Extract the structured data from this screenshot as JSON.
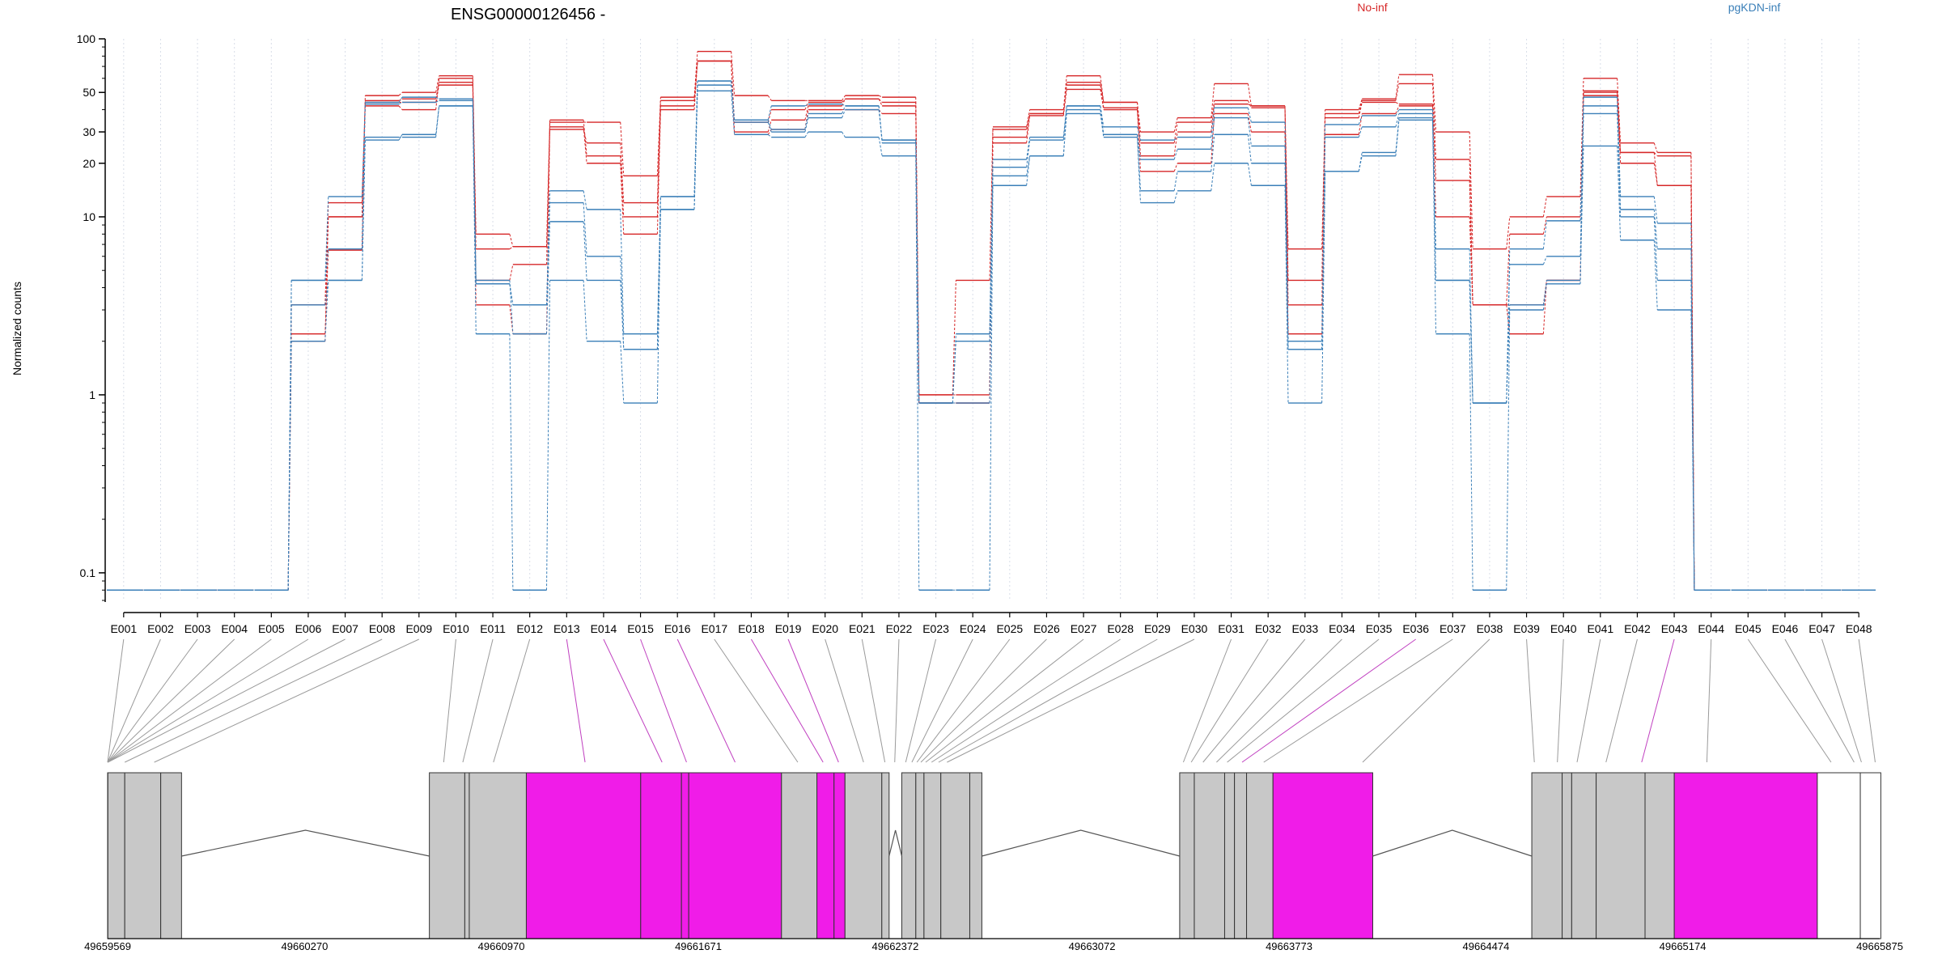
{
  "title": "ENSG00000126456 -",
  "legend": [
    {
      "label": "No-inf",
      "color": "#d62728"
    },
    {
      "label": "pgKDN-inf",
      "color": "#3a7fb8"
    }
  ],
  "ylabel": "Normalized counts",
  "colors": {
    "no_inf": "#d62728",
    "pgkdn_inf": "#3a7fb8",
    "exon_gray": "#c8c8c8",
    "exon_highlight": "#f01ce8",
    "connector_gray": "#9a9a9a",
    "connector_highlight": "#c040c0"
  },
  "chart_data": {
    "type": "line",
    "yscale": "log",
    "ylim": [
      0.07,
      100
    ],
    "grid": "vertical dashed lines at exon centers",
    "legend_position": "top",
    "yticks": [
      {
        "value": 0.1,
        "label": "0.1"
      },
      {
        "value": 1,
        "label": "1"
      },
      {
        "value": 10,
        "label": "10"
      },
      {
        "value": 20,
        "label": "20"
      },
      {
        "value": 30,
        "label": "30"
      },
      {
        "value": 50,
        "label": "50"
      },
      {
        "value": 100,
        "label": "100"
      }
    ],
    "categories": [
      "E001",
      "E002",
      "E003",
      "E004",
      "E005",
      "E006",
      "E007",
      "E008",
      "E009",
      "E010",
      "E011",
      "E012",
      "E013",
      "E014",
      "E015",
      "E016",
      "E017",
      "E018",
      "E019",
      "E020",
      "E021",
      "E022",
      "E023",
      "E024",
      "E025",
      "E026",
      "E027",
      "E028",
      "E029",
      "E030",
      "E031",
      "E032",
      "E033",
      "E034",
      "E035",
      "E036",
      "E037",
      "E038",
      "E039",
      "E040",
      "E041",
      "E042",
      "E043",
      "E044",
      "E045",
      "E046",
      "E047",
      "E048"
    ],
    "highlighted_exons": [
      "E013",
      "E014",
      "E015",
      "E016",
      "E018",
      "E019",
      "E036",
      "E043"
    ],
    "series": [
      {
        "name": "No-inf",
        "values": [
          0.08,
          0.08,
          0.08,
          0.08,
          0.08,
          2.2,
          6.5,
          48,
          50,
          62,
          8,
          6.8,
          34,
          34,
          17,
          47,
          85,
          48,
          45,
          45,
          48,
          47,
          1,
          4.4,
          32,
          40,
          62,
          44,
          30,
          36,
          56,
          42,
          6.6,
          40,
          46,
          63,
          30,
          6.6,
          10,
          13,
          60,
          26,
          23,
          0.08,
          0.08,
          0.08,
          0.08,
          0.08
        ]
      },
      {
        "name": "No-inf",
        "values": [
          0.08,
          0.08,
          0.08,
          0.08,
          0.08,
          3.2,
          12,
          45,
          46,
          57,
          6.6,
          6.8,
          31,
          26,
          12,
          45,
          75,
          34,
          40,
          44,
          46,
          44,
          1,
          1,
          31,
          38,
          57,
          44,
          26,
          34,
          45,
          41,
          4.4,
          38,
          45,
          56,
          21,
          3.2,
          8,
          10,
          51,
          23,
          22,
          0.08,
          0.08,
          0.08,
          0.08,
          0.08
        ]
      },
      {
        "name": "No-inf",
        "values": [
          0.08,
          0.08,
          0.08,
          0.08,
          0.08,
          3.2,
          10,
          44,
          44,
          55,
          4.4,
          5.4,
          35,
          22,
          10,
          42,
          75,
          30,
          35,
          42,
          46,
          42,
          0.9,
          0.9,
          28,
          38,
          55,
          41,
          22,
          30,
          43,
          42,
          3.2,
          36,
          44,
          43,
          16,
          3.2,
          3.2,
          4.4,
          50,
          23,
          15,
          0.08,
          0.08,
          0.08,
          0.08,
          0.08
        ]
      },
      {
        "name": "No-inf",
        "values": [
          0.08,
          0.08,
          0.08,
          0.08,
          0.08,
          2,
          10,
          42,
          40,
          60,
          3.2,
          2.2,
          32,
          20,
          8,
          40,
          75,
          29,
          31,
          40,
          40,
          38,
          0.9,
          0.9,
          26,
          37,
          52,
          40,
          18,
          20,
          38,
          30,
          2.2,
          29,
          38,
          42,
          10,
          3.2,
          2.2,
          4.4,
          48,
          20,
          15,
          0.08,
          0.08,
          0.08,
          0.08,
          0.08
        ]
      },
      {
        "name": "pgKDN-inf",
        "values": [
          0.08,
          0.08,
          0.08,
          0.08,
          0.08,
          4.4,
          13,
          44,
          47,
          46,
          4.2,
          3.2,
          14,
          11,
          2.2,
          13,
          58,
          35,
          42,
          43,
          42,
          26,
          0.9,
          2.2,
          21,
          28,
          42,
          32,
          27,
          28,
          41,
          34,
          2,
          33,
          37,
          40,
          6.6,
          0.9,
          6.6,
          9.5,
          47,
          13,
          9.2,
          0.08,
          0.08,
          0.08,
          0.08,
          0.08
        ]
      },
      {
        "name": "pgKDN-inf",
        "values": [
          0.08,
          0.08,
          0.08,
          0.08,
          0.08,
          4.4,
          6.6,
          43,
          44,
          45,
          4.2,
          3.2,
          12,
          6,
          1.8,
          13,
          58,
          35,
          31,
          38,
          42,
          27,
          0.9,
          2,
          19,
          27,
          42,
          29,
          21,
          24,
          36,
          25,
          1.8,
          28,
          32,
          38,
          4.4,
          0.9,
          5.4,
          6,
          42,
          11,
          6.6,
          0.08,
          0.08,
          0.08,
          0.08,
          0.08
        ]
      },
      {
        "name": "pgKDN-inf",
        "values": [
          0.08,
          0.08,
          0.08,
          0.08,
          0.08,
          3.2,
          4.4,
          27,
          29,
          42,
          4.4,
          2.2,
          9.4,
          4.4,
          1.8,
          11,
          55,
          34,
          30,
          36,
          40,
          27,
          0.9,
          0.9,
          17,
          22,
          40,
          29,
          14,
          18,
          29,
          20,
          1.8,
          18,
          23,
          36,
          4.4,
          0.9,
          3.2,
          4.2,
          38,
          10,
          4.4,
          0.08,
          0.08,
          0.08,
          0.08,
          0.08
        ]
      },
      {
        "name": "pgKDN-inf",
        "values": [
          0.08,
          0.08,
          0.08,
          0.08,
          0.08,
          2,
          4.4,
          28,
          28,
          42,
          2.2,
          0.08,
          4.4,
          2,
          0.9,
          11,
          51,
          29,
          28,
          30,
          28,
          22,
          0.08,
          0.08,
          15,
          22,
          38,
          28,
          12,
          14,
          20,
          15,
          0.9,
          18,
          22,
          35,
          2.2,
          0.08,
          3,
          4.4,
          25,
          7.4,
          3,
          0.08,
          0.08,
          0.08,
          0.08,
          0.08
        ]
      }
    ]
  },
  "gene_model": {
    "coordinate_labels": [
      "49659569",
      "49660270",
      "49660970",
      "49661671",
      "49662372",
      "49663072",
      "49663773",
      "49664474",
      "49665174",
      "49665875"
    ],
    "coordinate_range": [
      49659569,
      49665875
    ],
    "blocks": [
      {
        "start": 49659569,
        "end": 49659570,
        "fill": "black"
      },
      {
        "start": 49659570,
        "end": 49659630,
        "fill": "gray"
      },
      {
        "start": 49659630,
        "end": 49659758,
        "fill": "gray"
      },
      {
        "start": 49659758,
        "end": 49659832,
        "fill": "gray"
      },
      {
        "start": 49660714,
        "end": 49660840,
        "fill": "gray"
      },
      {
        "start": 49660840,
        "end": 49660856,
        "fill": "gray"
      },
      {
        "start": 49660856,
        "end": 49661059,
        "fill": "gray"
      },
      {
        "start": 49661059,
        "end": 49661466,
        "fill": "magenta"
      },
      {
        "start": 49661466,
        "end": 49661611,
        "fill": "magenta"
      },
      {
        "start": 49661611,
        "end": 49661637,
        "fill": "magenta"
      },
      {
        "start": 49661637,
        "end": 49661967,
        "fill": "magenta"
      },
      {
        "start": 49661967,
        "end": 49662093,
        "fill": "gray"
      },
      {
        "start": 49662093,
        "end": 49662154,
        "fill": "magenta"
      },
      {
        "start": 49662154,
        "end": 49662193,
        "fill": "magenta"
      },
      {
        "start": 49662193,
        "end": 49662324,
        "fill": "gray"
      },
      {
        "start": 49662324,
        "end": 49662350,
        "fill": "gray"
      },
      {
        "start": 49662395,
        "end": 49662445,
        "fill": "gray"
      },
      {
        "start": 49662445,
        "end": 49662474,
        "fill": "gray"
      },
      {
        "start": 49662474,
        "end": 49662534,
        "fill": "gray"
      },
      {
        "start": 49662534,
        "end": 49662637,
        "fill": "gray"
      },
      {
        "start": 49662637,
        "end": 49662680,
        "fill": "gray"
      },
      {
        "start": 49663384,
        "end": 49663436,
        "fill": "gray"
      },
      {
        "start": 49663436,
        "end": 49663544,
        "fill": "gray"
      },
      {
        "start": 49663544,
        "end": 49663579,
        "fill": "gray"
      },
      {
        "start": 49663579,
        "end": 49663622,
        "fill": "gray"
      },
      {
        "start": 49663622,
        "end": 49663716,
        "fill": "gray"
      },
      {
        "start": 49663716,
        "end": 49664071,
        "fill": "magenta"
      },
      {
        "start": 49664637,
        "end": 49664745,
        "fill": "gray"
      },
      {
        "start": 49664745,
        "end": 49664779,
        "fill": "gray"
      },
      {
        "start": 49664779,
        "end": 49664866,
        "fill": "gray"
      },
      {
        "start": 49664866,
        "end": 49665040,
        "fill": "gray"
      },
      {
        "start": 49665040,
        "end": 49665144,
        "fill": "gray"
      },
      {
        "start": 49665144,
        "end": 49665653,
        "fill": "magenta"
      },
      {
        "start": 49665653,
        "end": 49665806,
        "fill": "white"
      },
      {
        "start": 49665806,
        "end": 49665879,
        "fill": "white"
      }
    ],
    "introns": [
      {
        "start": 49659832,
        "end": 49660714
      },
      {
        "start": 49662350,
        "end": 49662395
      },
      {
        "start": 49662680,
        "end": 49663384
      },
      {
        "start": 49664071,
        "end": 49664637
      }
    ],
    "exon_genomic_positions": [
      49659569,
      49659569,
      49659569,
      49659569,
      49659569,
      49659569,
      49659570,
      49659630,
      49659735,
      49660765,
      49660833,
      49660942,
      49661268,
      49661542,
      49661629,
      49661802,
      49662025,
      49662115,
      49662170,
      49662259,
      49662335,
      49662370,
      49662409,
      49662431,
      49662449,
      49662463,
      49662480,
      49662501,
      49662526,
      49662556,
      49663397,
      49663425,
      49663467,
      49663515,
      49663553,
      49663606,
      49663683,
      49664035,
      49664646,
      49664728,
      49664798,
      49664901,
      49665028,
      49665260,
      49665702,
      49665784,
      49665810,
      49665859
    ]
  }
}
